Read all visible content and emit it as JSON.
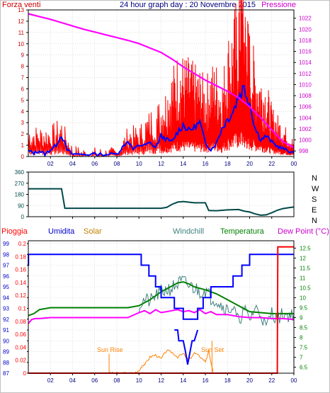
{
  "chart_data": [
    {
      "type": "line",
      "title": "24 hour graph day : 20 Novembre 2015",
      "left_label": "Forza venti",
      "right_label": "Pressione",
      "x_ticks": [
        "02",
        "04",
        "06",
        "08",
        "10",
        "12",
        "14",
        "16",
        "18",
        "20",
        "22",
        "00"
      ],
      "y_left_ticks": [
        "0",
        "1",
        "2",
        "3",
        "4",
        "5",
        "6",
        "7",
        "8",
        "9",
        "10",
        "11",
        "12",
        "13"
      ],
      "y_right_ticks": [
        "998",
        "1000",
        "1002",
        "1004",
        "1006",
        "1008",
        "1010",
        "1012",
        "1014",
        "1016",
        "1018",
        "1020",
        "1022"
      ],
      "ylim_left": [
        0,
        13
      ],
      "ylim_right": [
        997,
        1023.5
      ],
      "grid": true,
      "colors": {
        "gust": "#ff0000",
        "wind": "#0000ff",
        "pressure": "#ff00ff"
      },
      "series": [
        {
          "key": "gust",
          "x": [
            0,
            1,
            2,
            3,
            4,
            5,
            6,
            7,
            8,
            9,
            10,
            11,
            12,
            12.5,
            13,
            13.5,
            14,
            14.5,
            15,
            15.5,
            16,
            16.5,
            17,
            17.5,
            18,
            18.5,
            19,
            19.25,
            19.5,
            19.75,
            20,
            20.5,
            21,
            21.5,
            22,
            22.5,
            23,
            23.5,
            24
          ],
          "y": [
            1.8,
            1.8,
            1.8,
            2.3,
            0.4,
            0.2,
            0.2,
            0.2,
            0.2,
            1.8,
            1.8,
            2.8,
            3.5,
            4.2,
            5.2,
            6.1,
            6.0,
            5.8,
            5.4,
            5.2,
            4.5,
            5.5,
            5.5,
            4.5,
            7.2,
            8.2,
            10.0,
            12.5,
            9.5,
            8.5,
            7.5,
            6.0,
            5.2,
            4.5,
            3.0,
            2.5,
            2.0,
            1.5,
            1.0
          ]
        },
        {
          "key": "wind",
          "x": [
            0,
            0.5,
            1,
            1.5,
            2,
            2.5,
            3,
            3.5,
            4,
            5,
            6,
            7,
            8,
            8.5,
            9,
            9.5,
            10,
            10.5,
            11,
            11.5,
            12,
            12.5,
            13,
            13.5,
            14,
            14.5,
            15,
            15.5,
            16,
            16.5,
            17,
            17.5,
            18,
            18.5,
            19,
            19.5,
            20,
            20.5,
            21,
            21.5,
            22,
            22.5,
            23,
            23.5,
            24
          ],
          "y": [
            0.5,
            0.3,
            0.5,
            0.2,
            0.6,
            1.0,
            1.9,
            0.6,
            0.2,
            0.2,
            0.2,
            0.2,
            0.2,
            0.8,
            1.4,
            0.6,
            1.0,
            1.0,
            1.2,
            0.8,
            1.8,
            1.5,
            1.3,
            2.2,
            2.8,
            2.3,
            2.6,
            3.0,
            1.2,
            0.6,
            1.2,
            2.5,
            3.3,
            4.0,
            5.4,
            6.1,
            4.8,
            2.5,
            1.5,
            1.8,
            1.3,
            0.9,
            0.7,
            0.5,
            0.3
          ]
        },
        {
          "key": "pressure",
          "x": [
            0,
            1,
            2,
            3,
            4,
            5,
            6,
            7,
            8,
            9,
            10,
            11,
            12,
            13,
            14,
            15,
            16,
            17,
            18,
            19,
            20,
            21,
            22,
            23,
            24
          ],
          "y": [
            1022.8,
            1022.3,
            1021.8,
            1021.2,
            1020.6,
            1020.0,
            1019.5,
            1019.0,
            1018.5,
            1018.0,
            1017.4,
            1016.6,
            1015.8,
            1014.6,
            1013.2,
            1012.0,
            1010.8,
            1009.8,
            1008.8,
            1007.6,
            1006.0,
            1004.0,
            1001.8,
            999.7,
            998.6
          ]
        }
      ]
    },
    {
      "type": "line",
      "title": "",
      "y_ticks": [
        "360",
        "270",
        "180",
        "90",
        "0"
      ],
      "right_labels": [
        "N",
        "W",
        "S",
        "E",
        "N"
      ],
      "ylim": [
        0,
        360
      ],
      "grid": true,
      "colors": {
        "direction": "#004848"
      },
      "series": [
        {
          "key": "direction",
          "x": [
            0,
            3,
            3.3,
            9,
            12,
            12.5,
            13,
            13.5,
            14,
            15,
            16,
            16.3,
            17,
            18,
            19,
            19.5,
            20,
            20.5,
            21,
            21.5,
            22,
            22.5,
            23,
            23.5,
            24
          ],
          "y": [
            225,
            225,
            68,
            68,
            68,
            75,
            100,
            118,
            122,
            112,
            112,
            50,
            48,
            55,
            58,
            45,
            38,
            22,
            12,
            15,
            32,
            52,
            65,
            72,
            78
          ]
        }
      ]
    },
    {
      "type": "line",
      "title": "",
      "legend": [
        "Pioggia",
        "Umidita",
        "Solar",
        "Windchill",
        "Temperatura",
        "Dew Point (°C)"
      ],
      "y_left_rain_ticks": [
        "0",
        "0.02",
        "0.04",
        "0.06",
        "0.08",
        "0.1",
        "0.12",
        "0.14",
        "0.16",
        "0.18",
        "0.2"
      ],
      "y_left_hum_ticks": [
        "87",
        "88",
        "89",
        "90",
        "91",
        "92",
        "93",
        "94",
        "95",
        "96",
        "97",
        "98",
        "99"
      ],
      "y_right_ticks": [
        "6.5",
        "7",
        "7.5",
        "8",
        "8.5",
        "9",
        "9.5",
        "10",
        "10.5",
        "11",
        "11.5",
        "12",
        "12.5"
      ],
      "x_ticks": [
        "02",
        "04",
        "06",
        "08",
        "10",
        "12",
        "14",
        "16",
        "18",
        "20",
        "22",
        "00"
      ],
      "ylim_rain": [
        0,
        0.2
      ],
      "ylim_hum": [
        87,
        99
      ],
      "ylim_temp": [
        6.2,
        12.8
      ],
      "grid": true,
      "annotations": [
        "Sun Rise",
        "Sun Set"
      ],
      "colors": {
        "rain": "#ff0000",
        "humidity": "#0000ff",
        "solar": "#ff8000",
        "windchill": "#408080",
        "temperature": "#008000",
        "dewpoint": "#ff00ff"
      },
      "series": [
        {
          "key": "humidity",
          "x": [
            0,
            0.01,
            0.01,
            10.2,
            10.2,
            10.9,
            10.9,
            11.5,
            11.5,
            12.0,
            12.0,
            13.2,
            13.2,
            14.0,
            14.0,
            15.3,
            15.3,
            15.8,
            15.8,
            16.5,
            16.5,
            18.5,
            18.5,
            19.3,
            19.3,
            20.0,
            20.0,
            20.8,
            20.8,
            21.8,
            21.8,
            22.8,
            22.8,
            24
          ],
          "y": [
            97,
            97,
            98,
            98,
            97,
            97,
            96,
            96,
            95,
            95,
            94,
            94,
            93,
            93,
            92,
            92,
            93,
            93,
            94,
            94,
            95,
            95,
            96,
            96,
            97,
            97,
            98,
            98,
            98,
            98,
            98,
            98,
            98,
            98
          ]
        },
        {
          "key": "humidity_dip",
          "x": [
            13.2,
            13.5,
            13.6,
            14.0,
            14.2,
            14.4,
            14.8,
            15.0,
            15.3
          ],
          "y": [
            91,
            91,
            90,
            90,
            89,
            87.8,
            90,
            90,
            91
          ]
        },
        {
          "key": "temperature",
          "x": [
            0,
            0.5,
            1,
            2,
            4,
            6,
            8,
            9,
            10,
            11,
            12,
            13,
            13.5,
            14,
            14.5,
            15,
            16,
            17,
            18,
            19,
            20,
            21,
            22,
            23,
            24
          ],
          "y": [
            9.1,
            9.2,
            9.4,
            9.5,
            9.5,
            9.5,
            9.5,
            9.5,
            9.6,
            9.9,
            10.3,
            10.6,
            10.75,
            10.8,
            10.7,
            10.55,
            10.4,
            10.2,
            9.9,
            9.6,
            9.3,
            9.25,
            9.2,
            9.2,
            9.2
          ]
        },
        {
          "key": "windchill",
          "x": [
            10,
            10.5,
            11,
            11.5,
            12,
            12.5,
            13,
            13.5,
            14,
            14.5,
            15,
            15.5,
            16,
            16.5,
            17,
            17.5,
            18,
            18.5,
            19,
            19.5,
            20,
            20.5,
            21,
            21.5,
            22,
            22.5,
            23,
            23.5,
            24
          ],
          "y": [
            9.6,
            9.9,
            9.8,
            10.1,
            10.3,
            10.4,
            10.5,
            10.7,
            10.8,
            10.6,
            10.5,
            10.3,
            10.4,
            10.0,
            9.9,
            9.6,
            9.4,
            9.5,
            8.8,
            9.4,
            8.9,
            9.5,
            9.2,
            8.5,
            9.3,
            8.9,
            9.2,
            9.1,
            9.2
          ]
        },
        {
          "key": "dewpoint",
          "x": [
            0,
            0.3,
            0.6,
            1,
            2,
            4,
            6,
            8,
            9,
            10,
            10.5,
            11,
            11.5,
            12,
            12.5,
            13,
            13.5,
            14,
            14.5,
            15,
            15.5,
            16,
            16.5,
            17,
            18,
            19,
            20,
            21,
            22,
            23,
            24
          ],
          "y": [
            8.7,
            8.9,
            8.95,
            8.95,
            9.0,
            9.0,
            9.0,
            9.0,
            9.0,
            9.25,
            9.35,
            9.2,
            9.4,
            9.25,
            9.3,
            9.35,
            9.4,
            9.3,
            9.35,
            9.25,
            9.4,
            9.2,
            9.3,
            9.15,
            9.15,
            9.05,
            9.0,
            9.0,
            8.95,
            8.95,
            8.9
          ]
        },
        {
          "key": "solar",
          "x": [
            7.3,
            7.5,
            8,
            8.5,
            9,
            9.5,
            10,
            10.3,
            10.6,
            11,
            11.5,
            12,
            12.5,
            13,
            13.5,
            14,
            14.5,
            15,
            15.5,
            16,
            16.3,
            16.7
          ],
          "y": [
            0,
            0,
            0,
            0,
            0,
            0,
            0.003,
            0.012,
            0.015,
            0.025,
            0.028,
            0.022,
            0.035,
            0.032,
            0.025,
            0.03,
            0.02,
            0.031,
            0.026,
            0.018,
            0.033,
            0.002
          ]
        },
        {
          "key": "rain",
          "x": [
            0,
            22.5,
            22.55,
            24
          ],
          "y": [
            0,
            0,
            0.195,
            0.195
          ]
        }
      ]
    }
  ]
}
